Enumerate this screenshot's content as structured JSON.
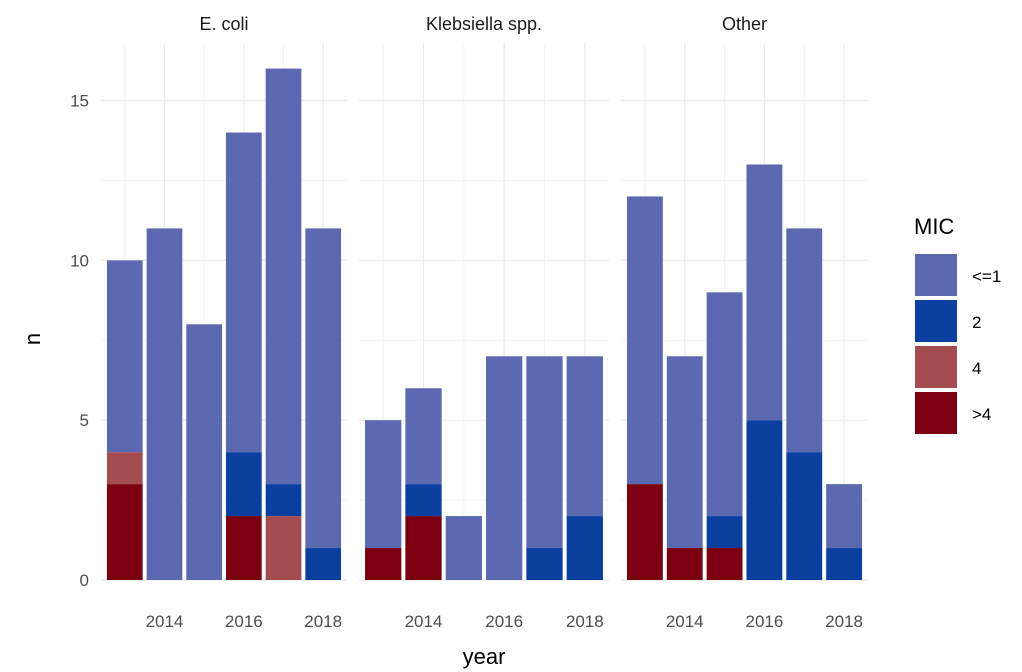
{
  "chart_data": {
    "type": "bar",
    "stacked": true,
    "xlabel": "year",
    "ylabel": "n",
    "ylim": [
      0,
      16.8
    ],
    "yticks": [
      0,
      5,
      10,
      15
    ],
    "xticks": [
      2014,
      2016,
      2018
    ],
    "xlim": [
      2012.4,
      2018.6
    ],
    "years": [
      2013,
      2014,
      2015,
      2016,
      2017,
      2018
    ],
    "grid": true,
    "legend": {
      "title": "MIC",
      "position": "right",
      "entries": [
        {
          "label": "<=1",
          "color": "#5B6AB0"
        },
        {
          "label": "2",
          "color": "#0A3FA0"
        },
        {
          "label": "4",
          "color": "#A44D50"
        },
        {
          "label": ">4",
          "color": "#7A0010"
        }
      ]
    },
    "stack_order": [
      ">4",
      "4",
      "2",
      "<=1"
    ],
    "colors": {
      "<=1": "#5B6AB0",
      "2": "#0A3FA0",
      "4": "#A44D50",
      ">4": "#7A0010"
    },
    "facets": [
      {
        "title": "E. coli",
        "series": [
          {
            "name": "<=1",
            "values": [
              6,
              11,
              8,
              10,
              13,
              10
            ]
          },
          {
            "name": "2",
            "values": [
              0,
              0,
              0,
              2,
              1,
              1
            ]
          },
          {
            "name": "4",
            "values": [
              1,
              0,
              0,
              0,
              2,
              0
            ]
          },
          {
            "name": ">4",
            "values": [
              3,
              0,
              0,
              2,
              0,
              0
            ]
          }
        ]
      },
      {
        "title": "Klebsiella spp.",
        "series": [
          {
            "name": "<=1",
            "values": [
              4,
              3,
              2,
              7,
              6,
              5
            ]
          },
          {
            "name": "2",
            "values": [
              0,
              1,
              0,
              0,
              1,
              2
            ]
          },
          {
            "name": "4",
            "values": [
              0,
              0,
              0,
              0,
              0,
              0
            ]
          },
          {
            "name": ">4",
            "values": [
              1,
              2,
              0,
              0,
              0,
              0
            ]
          }
        ]
      },
      {
        "title": "Other",
        "series": [
          {
            "name": "<=1",
            "values": [
              9,
              6,
              7,
              8,
              7,
              2
            ]
          },
          {
            "name": "2",
            "values": [
              0,
              0,
              1,
              5,
              4,
              1
            ]
          },
          {
            "name": "4",
            "values": [
              0,
              0,
              0,
              0,
              0,
              0
            ]
          },
          {
            "name": ">4",
            "values": [
              3,
              1,
              1,
              0,
              0,
              0
            ]
          }
        ]
      }
    ]
  }
}
